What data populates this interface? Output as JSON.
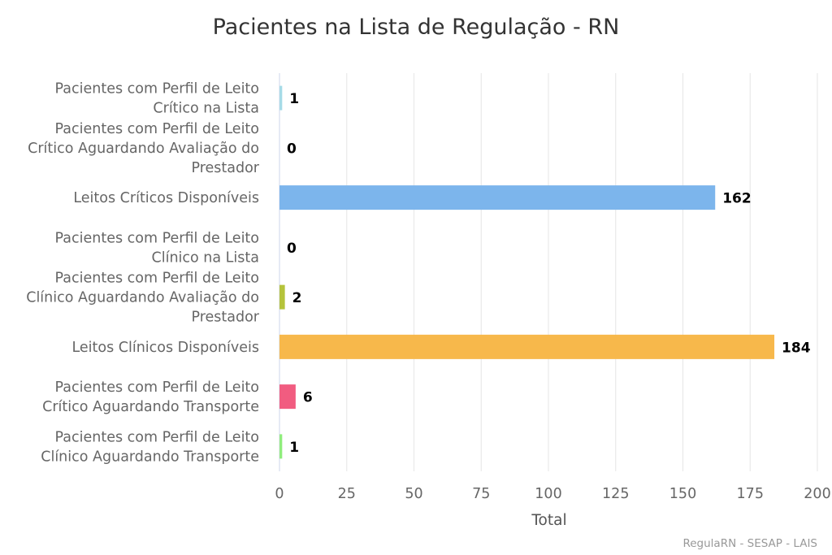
{
  "chart_data": {
    "type": "bar",
    "orientation": "horizontal",
    "title": "Pacientes na Lista de Regulação - RN",
    "xlabel": "Total",
    "ylabel": "",
    "xlim": [
      0,
      200
    ],
    "x_ticks": [
      0,
      25,
      50,
      75,
      100,
      125,
      150,
      175,
      200
    ],
    "grid": true,
    "legend": "none",
    "categories": [
      [
        "Pacientes com Perfil de Leito",
        "Crítico na Lista"
      ],
      [
        "Pacientes com Perfil de Leito",
        "Crítico Aguardando Avaliação do",
        "Prestador"
      ],
      [
        "Leitos Críticos Disponíveis"
      ],
      [
        "Pacientes com Perfil de Leito",
        "Clínico na Lista"
      ],
      [
        "Pacientes com Perfil de Leito",
        "Clínico Aguardando Avaliação do",
        "Prestador"
      ],
      [
        "Leitos Clínicos Disponíveis"
      ],
      [
        "Pacientes com Perfil de Leito",
        "Crítico Aguardando Transporte"
      ],
      [
        "Pacientes com Perfil de Leito",
        "Clínico Aguardando Transporte"
      ]
    ],
    "values": [
      1,
      0,
      162,
      0,
      2,
      184,
      6,
      1
    ],
    "colors": [
      "#a6dbe7",
      "#6fb8d6",
      "#7cb5ec",
      "#2b908f",
      "#b5c33b",
      "#f7b84b",
      "#f15c80",
      "#90ed7d"
    ]
  },
  "credits": "RegulaRN - SESAP - LAIS"
}
